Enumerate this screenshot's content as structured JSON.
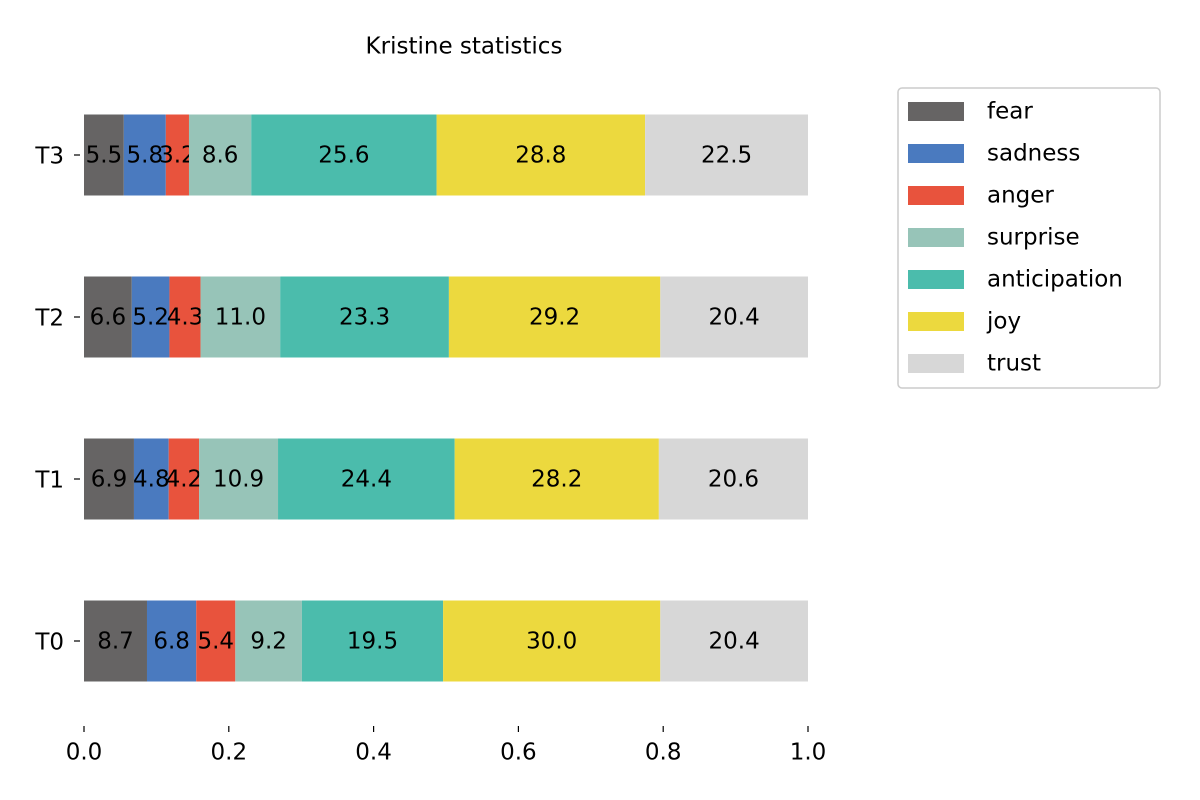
{
  "chart_data": {
    "type": "stacked-barh",
    "title": "Kristine statistics",
    "categories": [
      "T0",
      "T1",
      "T2",
      "T3"
    ],
    "series": [
      {
        "name": "fear",
        "color": "#666464",
        "values": [
          0.087,
          0.069,
          0.066,
          0.055
        ],
        "value_labels": [
          "8.7",
          "6.9",
          "6.6",
          "5.5"
        ]
      },
      {
        "name": "sadness",
        "color": "#4a7abf",
        "values": [
          0.068,
          0.048,
          0.052,
          0.058
        ],
        "value_labels": [
          "6.8",
          "4.8",
          "5.2",
          "5.8"
        ]
      },
      {
        "name": "anger",
        "color": "#e8533d",
        "values": [
          0.054,
          0.042,
          0.043,
          0.032
        ],
        "value_labels": [
          "5.4",
          "4.2",
          "4.3",
          "3.2"
        ]
      },
      {
        "name": "surprise",
        "color": "#97c4b8",
        "values": [
          0.092,
          0.109,
          0.11,
          0.086
        ],
        "value_labels": [
          "9.2",
          "10.9",
          "11.0",
          "8.6"
        ]
      },
      {
        "name": "anticipation",
        "color": "#4bbcac",
        "values": [
          0.195,
          0.244,
          0.233,
          0.256
        ],
        "value_labels": [
          "19.5",
          "24.4",
          "23.3",
          "25.6"
        ]
      },
      {
        "name": "joy",
        "color": "#ecd93e",
        "values": [
          0.3,
          0.282,
          0.292,
          0.288
        ],
        "value_labels": [
          "30.0",
          "28.2",
          "29.2",
          "28.8"
        ]
      },
      {
        "name": "trust",
        "color": "#d7d7d7",
        "values": [
          0.204,
          0.206,
          0.204,
          0.225
        ],
        "value_labels": [
          "20.4",
          "20.6",
          "20.4",
          "22.5"
        ]
      }
    ],
    "xlim": [
      0,
      1
    ],
    "xticks": [
      {
        "value": 0,
        "label": "0.0"
      },
      {
        "value": 0.2,
        "label": "0.2"
      },
      {
        "value": 0.4,
        "label": "0.4"
      },
      {
        "value": 0.6,
        "label": "0.6"
      },
      {
        "value": 0.8,
        "label": "0.8"
      },
      {
        "value": 1,
        "label": "1.0"
      }
    ],
    "legend": "upper-right-outside"
  }
}
